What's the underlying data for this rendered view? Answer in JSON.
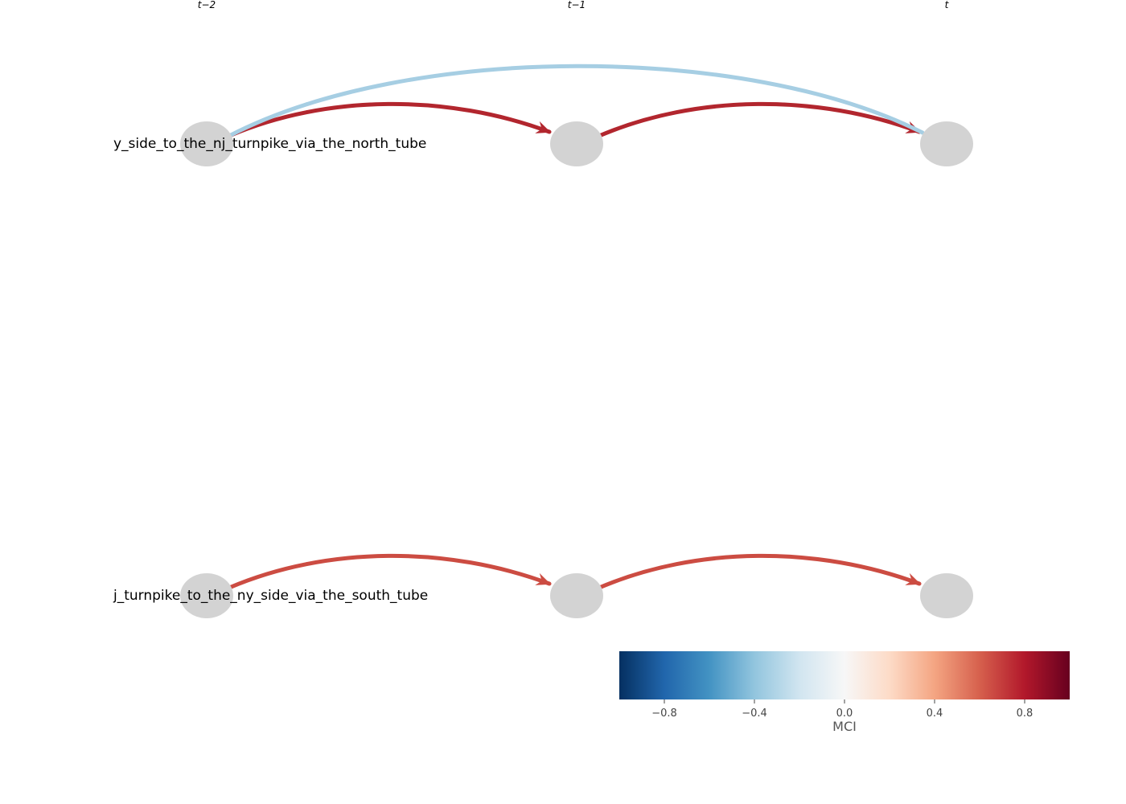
{
  "time_labels": [
    "t−2",
    "t−1",
    "t"
  ],
  "variables": [
    "y_side_to_the_nj_turnpike_via_the_north_tube",
    "j_turnpike_to_the_ny_side_via_the_south_tube"
  ],
  "colors": {
    "node": "#d3d3d3",
    "north_lag1": "#b2262e",
    "north_lag2": "#a6cee3",
    "south_lag1": "#cc4c42"
  },
  "links": [
    {
      "variable": 0,
      "from_lag": 2,
      "to_lag": 1,
      "color_key": "north_lag1"
    },
    {
      "variable": 0,
      "from_lag": 1,
      "to_lag": 0,
      "color_key": "north_lag1"
    },
    {
      "variable": 0,
      "from_lag": 2,
      "to_lag": 0,
      "color_key": "north_lag2"
    },
    {
      "variable": 1,
      "from_lag": 2,
      "to_lag": 1,
      "color_key": "south_lag1"
    },
    {
      "variable": 1,
      "from_lag": 1,
      "to_lag": 0,
      "color_key": "south_lag1"
    }
  ],
  "colorbar": {
    "title": "MCI",
    "range": [
      -1,
      1
    ],
    "ticks": [
      {
        "value": -0.8,
        "label": "−0.8"
      },
      {
        "value": -0.4,
        "label": "−0.4"
      },
      {
        "value": 0.0,
        "label": "0.0"
      },
      {
        "value": 0.4,
        "label": "0.4"
      },
      {
        "value": 0.8,
        "label": "0.8"
      }
    ],
    "stops": [
      "#053061",
      "#2166ac",
      "#4393c3",
      "#92c5de",
      "#d1e5f0",
      "#f7f7f7",
      "#fddbc7",
      "#f4a582",
      "#d6604d",
      "#b2182b",
      "#67001f"
    ]
  }
}
